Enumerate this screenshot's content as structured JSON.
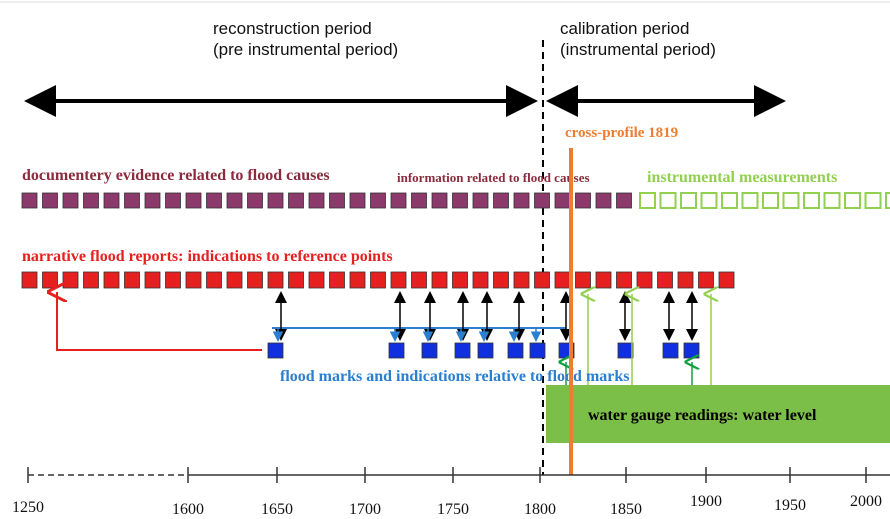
{
  "periods": {
    "reconstruction": {
      "title": "reconstruction period",
      "subtitle": "(pre instrumental period)"
    },
    "calibration": {
      "title": "calibration period",
      "subtitle": "(instrumental period)"
    }
  },
  "labels": {
    "cross_profile": "cross-profile 1819",
    "documentary": "documentery evidence related to flood causes",
    "information": "information related to flood causes",
    "instrumental": "instrumental measurements",
    "narrative": "narrative flood reports: indications to reference points",
    "flood_marks": "flood marks and indications relative to flood marks",
    "water_gauge": "water gauge readings: water level"
  },
  "axis": {
    "ticks": [
      "1250",
      "1600",
      "1650",
      "1700",
      "1750",
      "1800",
      "1850",
      "1900",
      "1950",
      "2000"
    ]
  }
}
